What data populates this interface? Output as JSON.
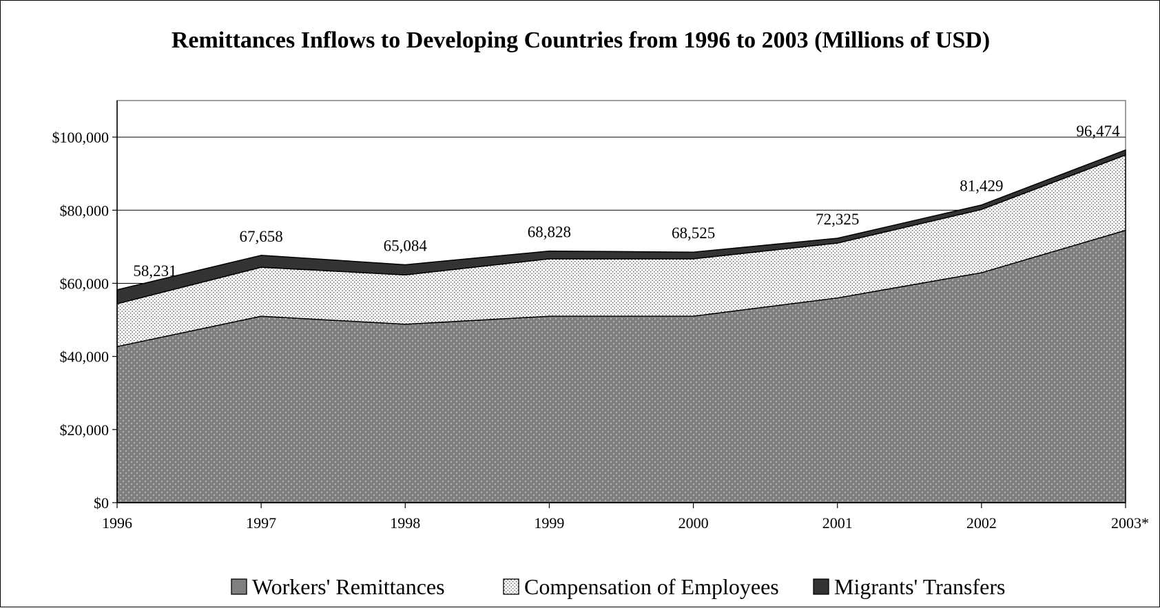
{
  "chart_data": {
    "type": "area",
    "stacked": true,
    "title": "Remittances Inflows to Developing Countries from 1996 to 2003 (Millions of USD)",
    "xlabel": "",
    "ylabel": "",
    "categories": [
      "1996",
      "1997",
      "1998",
      "1999",
      "2000",
      "2001",
      "2002",
      "2003*"
    ],
    "ylim": [
      0,
      110000
    ],
    "yticks": [
      0,
      20000,
      40000,
      60000,
      80000,
      100000
    ],
    "ytick_labels": [
      "$0",
      "$20,000",
      "$40,000",
      "$60,000",
      "$80,000",
      "$100,000"
    ],
    "grid": "horizontal",
    "legend_position": "bottom",
    "series": [
      {
        "name": "Workers' Remittances",
        "values": [
          42700,
          51000,
          48800,
          51000,
          51000,
          56000,
          62900,
          74500
        ],
        "color": "#808080",
        "pattern": "dots-light"
      },
      {
        "name": "Compensation of Employees",
        "values": [
          11700,
          13400,
          13500,
          15700,
          15700,
          15000,
          17300,
          20600
        ],
        "color": "#ffffff",
        "pattern": "dots-dark"
      },
      {
        "name": "Migrants' Transfers",
        "values": [
          3831,
          3258,
          2784,
          2128,
          1825,
          1325,
          1229,
          1374
        ],
        "color": "#333333",
        "pattern": "solid"
      }
    ],
    "totals": [
      58231,
      67658,
      65084,
      68828,
      68525,
      72325,
      81429,
      96474
    ],
    "total_labels": [
      "58,231",
      "67,658",
      "65,084",
      "68,828",
      "68,525",
      "72,325",
      "81,429",
      "96,474"
    ]
  }
}
